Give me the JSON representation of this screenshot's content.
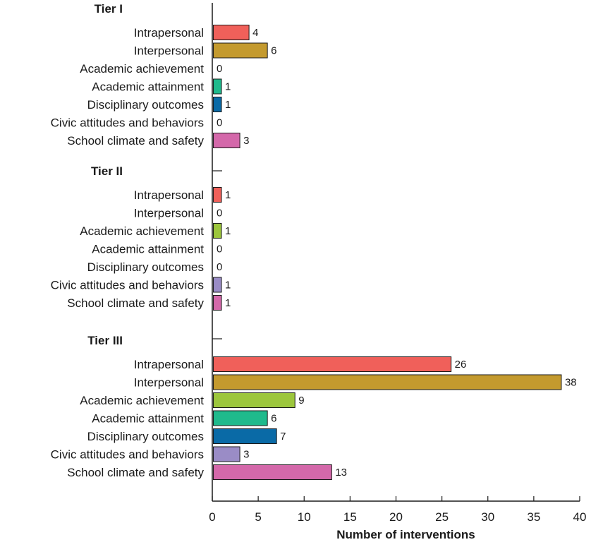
{
  "chart_data": {
    "type": "bar",
    "orientation": "horizontal",
    "title": "",
    "xlabel": "Number of interventions",
    "ylabel": "",
    "xlim": [
      0,
      40
    ],
    "xticks": [
      0,
      5,
      10,
      15,
      20,
      25,
      30,
      35,
      40
    ],
    "grid": false,
    "legend": "none",
    "categories": [
      "Intrapersonal",
      "Interpersonal",
      "Academic achievement",
      "Academic attainment",
      "Disciplinary outcomes",
      "Civic attitudes and behaviors",
      "School climate and safety"
    ],
    "colors": [
      "#f0605a",
      "#c49a2e",
      "#9cc63c",
      "#1fba8c",
      "#0a6aa6",
      "#9a8cc6",
      "#d468aa"
    ],
    "groups": [
      {
        "name": "Tier I",
        "values": [
          4,
          6,
          0,
          1,
          1,
          0,
          3
        ]
      },
      {
        "name": "Tier II",
        "values": [
          1,
          0,
          1,
          0,
          0,
          1,
          1
        ]
      },
      {
        "name": "Tier III",
        "values": [
          26,
          38,
          9,
          6,
          7,
          3,
          13
        ]
      }
    ]
  }
}
